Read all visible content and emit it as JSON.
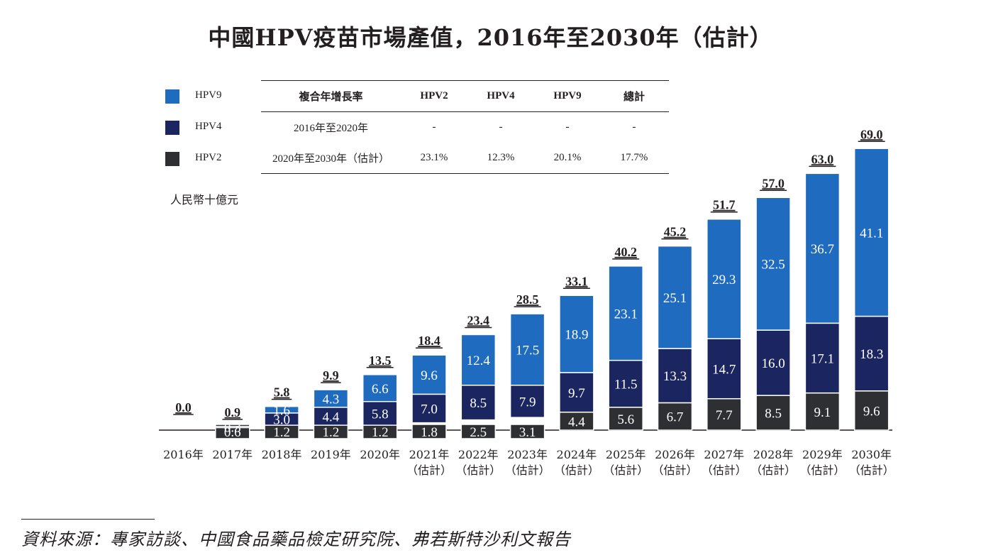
{
  "title": "中國HPV疫苗市場產值，2016年至2030年（估計）",
  "unit_label": "人民幣十億元",
  "legend": [
    {
      "label": "HPV9",
      "color": "#1f6bbf"
    },
    {
      "label": "HPV4",
      "color": "#1b2660"
    },
    {
      "label": "HPV2",
      "color": "#2d2f33"
    }
  ],
  "cagr_table": {
    "headers": [
      "複合年增長率",
      "HPV2",
      "HPV4",
      "HPV9",
      "總計"
    ],
    "rows": [
      [
        "2016年至2020年",
        "-",
        "-",
        "-",
        "-"
      ],
      [
        "2020年至2030年（估計）",
        "23.1%",
        "12.3%",
        "20.1%",
        "17.7%"
      ]
    ]
  },
  "source": "資料來源：專家訪談、中國食品藥品檢定研究院、弗若斯特沙利文報告",
  "chart_data": {
    "type": "bar",
    "stacked": true,
    "categories": [
      "2016年",
      "2017年",
      "2018年",
      "2019年",
      "2020年",
      "2021年\n（估計）",
      "2022年\n（估計）",
      "2023年\n（估計）",
      "2024年\n（估計）",
      "2025年\n（估計）",
      "2026年\n（估計）",
      "2027年\n（估計）",
      "2028年\n（估計）",
      "2029年\n（估計）",
      "2030年\n（估計）"
    ],
    "series": [
      {
        "name": "HPV2",
        "color": "#2d2f33",
        "values": [
          0,
          0.6,
          1.2,
          1.2,
          1.2,
          1.8,
          2.5,
          3.1,
          4.4,
          5.6,
          6.7,
          7.7,
          8.5,
          9.1,
          9.6
        ]
      },
      {
        "name": "HPV4",
        "color": "#1b2660",
        "values": [
          0,
          0.3,
          3.0,
          4.4,
          5.8,
          7.0,
          8.5,
          7.9,
          9.7,
          11.5,
          13.3,
          14.7,
          16.0,
          17.1,
          18.3
        ]
      },
      {
        "name": "HPV9",
        "color": "#1f6bbf",
        "values": [
          0,
          0,
          1.6,
          4.3,
          6.6,
          9.6,
          12.4,
          17.5,
          18.9,
          23.1,
          25.1,
          29.3,
          32.5,
          36.7,
          41.1
        ]
      }
    ],
    "totals": [
      "0.0",
      "0.9",
      "5.8",
      "9.9",
      "13.5",
      "18.4",
      "23.4",
      "28.5",
      "33.1",
      "40.2",
      "45.2",
      "51.7",
      "57.0",
      "63.0",
      "69.0"
    ],
    "series_labels": {
      "HPV2": [
        "",
        "0.6",
        "1.2",
        "1.2",
        "1.2",
        "1.8",
        "2.5",
        "3.1",
        "4.4",
        "5.6",
        "6.7",
        "7.7",
        "8.5",
        "9.1",
        "9.6"
      ],
      "HPV4": [
        "",
        "0.3",
        "3.0",
        "4.4",
        "5.8",
        "7.0",
        "8.5",
        "7.9",
        "9.7",
        "11.5",
        "13.3",
        "14.7",
        "16.0",
        "17.1",
        "18.3"
      ],
      "HPV9": [
        "",
        "",
        "1.6",
        "4.3",
        "6.6",
        "9.6",
        "12.4",
        "17.5",
        "18.9",
        "23.1",
        "25.1",
        "29.3",
        "32.5",
        "36.7",
        "41.1"
      ]
    },
    "ylabel": "人民幣十億元",
    "grid": false
  }
}
